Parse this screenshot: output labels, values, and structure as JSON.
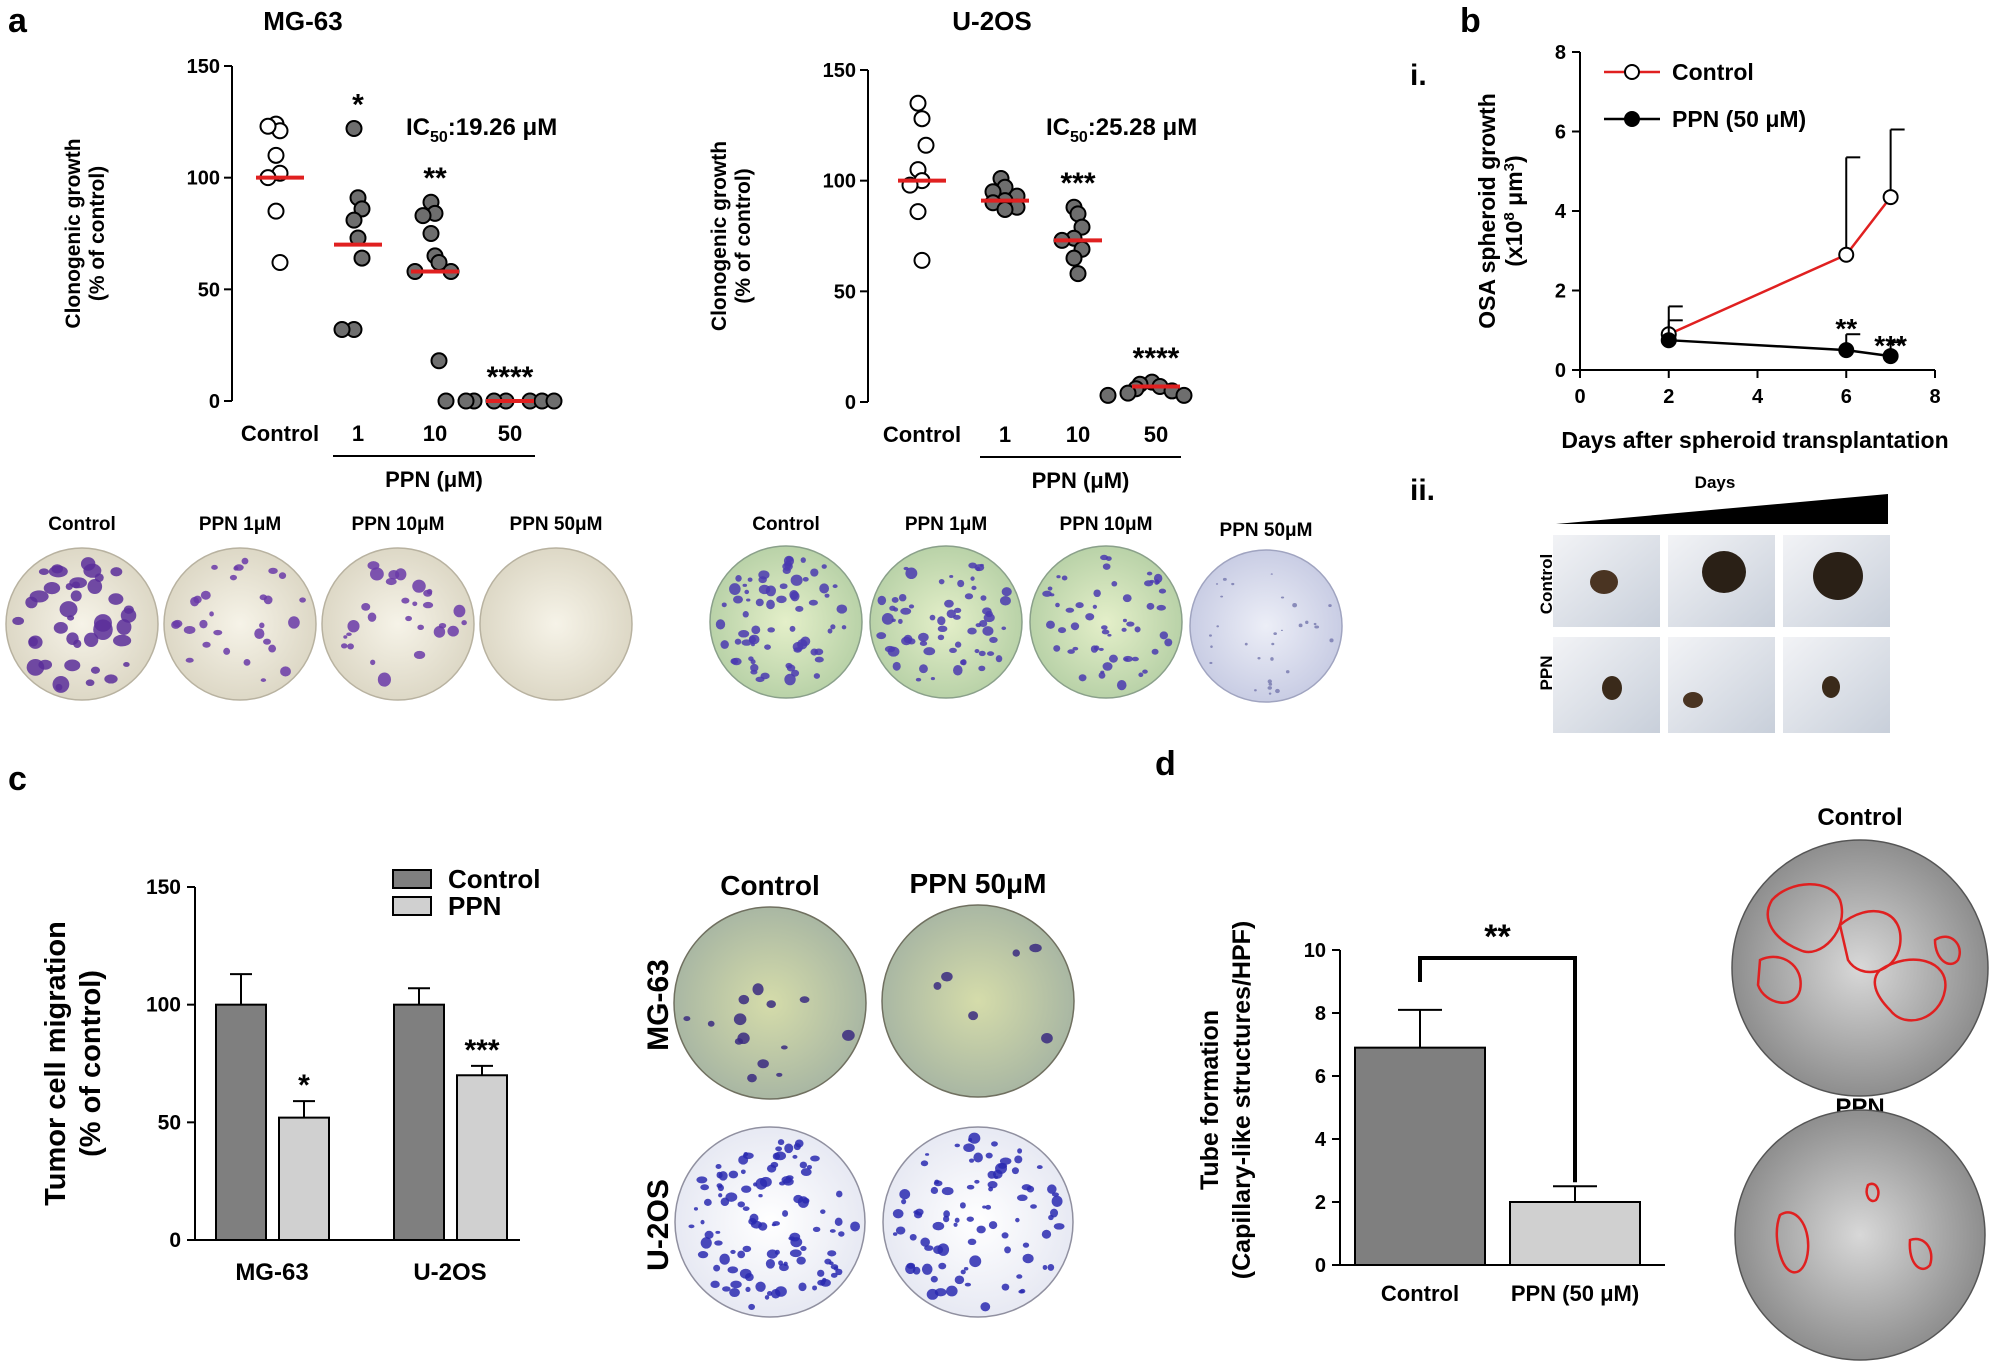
{
  "panel_labels": {
    "a": "a",
    "b": "b",
    "c": "c",
    "d": "d"
  },
  "colors": {
    "control_fill": "#7f7f7f",
    "ppn_fill": "#d0d0d0",
    "median": "#e02020",
    "control_line": "#e02020",
    "ppn_line": "#000000",
    "dark_dot": "#6e6e6e",
    "control_dot": "#ffffff"
  },
  "chart_data": [
    {
      "id": "mg63",
      "type": "scatter",
      "title": "MG-63",
      "ylabel_line1": "Clonogenic growth",
      "ylabel_line2": "(% of control)",
      "ylim": [
        0,
        150
      ],
      "yticks": [
        "0",
        "50",
        "100",
        "150"
      ],
      "categories": [
        "Control",
        "1",
        "10",
        "50"
      ],
      "group_label": "PPN (μM)",
      "ic50_prefix": "IC",
      "ic50_sub": "50",
      "ic50_value": ":19.26 μM",
      "points": [
        [
          124,
          121,
          123,
          110,
          102,
          100,
          85,
          62
        ],
        [
          122,
          91,
          86,
          81,
          73,
          64,
          32,
          32
        ],
        [
          89,
          84,
          83,
          75,
          65,
          62,
          58,
          58,
          18
        ],
        [
          0,
          0,
          0,
          0,
          0,
          0,
          0,
          0
        ]
      ],
      "medians": [
        100,
        70,
        58,
        0
      ],
      "stars": [
        "",
        "*",
        "**",
        "****"
      ]
    },
    {
      "id": "u2os",
      "type": "scatter",
      "title": "U-2OS",
      "ylabel_line1": "Clonogenic growth",
      "ylabel_line2": "(% of control)",
      "ylim": [
        0,
        150
      ],
      "yticks": [
        "0",
        "50",
        "100",
        "150"
      ],
      "categories": [
        "Control",
        "1",
        "10",
        "50"
      ],
      "group_label": "PPN (μM)",
      "ic50_prefix": "IC",
      "ic50_sub": "50",
      "ic50_value": ":25.28 μM",
      "points": [
        [
          135,
          128,
          116,
          105,
          100,
          98,
          86,
          64
        ],
        [
          101,
          97,
          95,
          93,
          91,
          90,
          88,
          87
        ],
        [
          88,
          85,
          79,
          74,
          73,
          69,
          65,
          58
        ],
        [
          9,
          8,
          7,
          6,
          5,
          4,
          3,
          3
        ]
      ],
      "medians": [
        100,
        91,
        73,
        7
      ],
      "stars": [
        "",
        "",
        "***",
        "****"
      ]
    },
    {
      "id": "spheroid",
      "type": "line",
      "xlabel": "Days after spheroid transplantation",
      "ylabel": "OSA spheroid growth",
      "ylabel_unit": "(x10",
      "ylabel_exp": "8",
      "ylabel_unit2": " μm",
      "ylabel_exp2": "3",
      "ylabel_close": ")",
      "xlim": [
        0,
        8
      ],
      "ylim": [
        0,
        8
      ],
      "xticks": [
        "0",
        "2",
        "4",
        "6",
        "8"
      ],
      "yticks": [
        "0",
        "2",
        "4",
        "6",
        "8"
      ],
      "series": [
        {
          "name": "Control",
          "x": [
            2,
            6,
            7
          ],
          "y": [
            0.9,
            2.9,
            4.35
          ],
          "err": [
            0.7,
            2.45,
            1.7
          ]
        },
        {
          "name": "PPN (50 μM)",
          "x": [
            2,
            6,
            7
          ],
          "y": [
            0.75,
            0.5,
            0.35
          ],
          "err": [
            0.5,
            0.4,
            0.35
          ]
        }
      ],
      "stars": [
        "**",
        "***"
      ]
    },
    {
      "id": "migration",
      "type": "bar",
      "ylabel_line1": "Tumor cell migration",
      "ylabel_line2": "(% of control)",
      "ylim": [
        0,
        150
      ],
      "yticks": [
        "0",
        "50",
        "100",
        "150"
      ],
      "categories": [
        "MG-63",
        "U-2OS"
      ],
      "series": [
        {
          "name": "Control",
          "values": [
            100,
            100
          ],
          "err": [
            13,
            7
          ]
        },
        {
          "name": "PPN",
          "values": [
            52,
            70
          ],
          "err": [
            7,
            4
          ]
        }
      ],
      "stars": [
        "*",
        "***"
      ]
    },
    {
      "id": "tube",
      "type": "bar",
      "ylabel_line1": "Tube formation",
      "ylabel_line2": "(Capillary-like structures/HPF)",
      "ylim": [
        0,
        10
      ],
      "yticks": [
        "0",
        "2",
        "4",
        "6",
        "8",
        "10"
      ],
      "categories": [
        "Control",
        "PPN (50 μM)"
      ],
      "values": [
        6.9,
        2.0
      ],
      "err": [
        1.2,
        0.5
      ],
      "significance": "**"
    }
  ],
  "micrographs": {
    "clonogenic_mg63": [
      "Control",
      "PPN 1μM",
      "PPN 10μM",
      "PPN 50μM"
    ],
    "clonogenic_u2os": [
      "Control",
      "PPN 1μM",
      "PPN 10μM",
      "PPN 50μM"
    ],
    "spheroid_label": "ii.",
    "spheroid_days": "Days",
    "spheroid_rows": [
      "Control",
      "PPN"
    ],
    "panel_i_label": "i.",
    "migration_cols": [
      "Control",
      "PPN 50μM"
    ],
    "migration_rows": [
      "MG-63",
      "U-2OS"
    ],
    "tube_titles": [
      "Control",
      "PPN"
    ]
  }
}
